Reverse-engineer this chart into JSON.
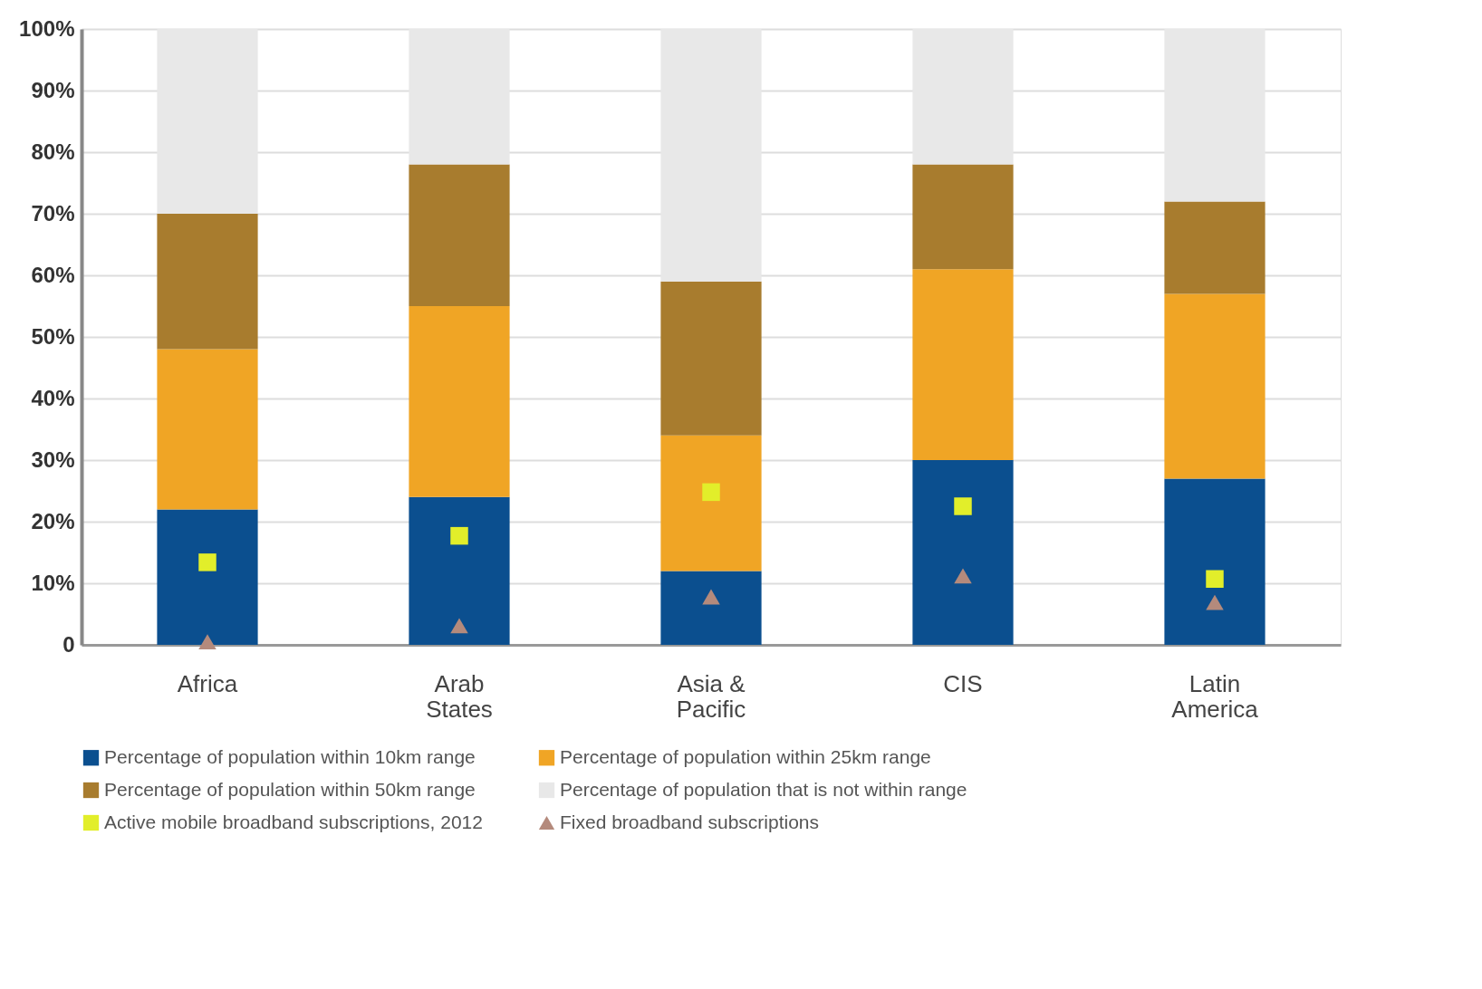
{
  "chart_data": {
    "type": "bar",
    "stacked": true,
    "categories": [
      "Africa",
      "Arab States",
      "Asia & Pacific",
      "CIS",
      "Latin America"
    ],
    "ylim": [
      0,
      100
    ],
    "yticks": [
      {
        "value": 0,
        "label": "0"
      },
      {
        "value": 10,
        "label": "10%"
      },
      {
        "value": 20,
        "label": "20%"
      },
      {
        "value": 30,
        "label": "30%"
      },
      {
        "value": 40,
        "label": "40%"
      },
      {
        "value": 50,
        "label": "50%"
      },
      {
        "value": 60,
        "label": "60%"
      },
      {
        "value": 70,
        "label": "70%"
      },
      {
        "value": 80,
        "label": "80%"
      },
      {
        "value": 90,
        "label": "90%"
      },
      {
        "value": 100,
        "label": "100%"
      }
    ],
    "grid": "y",
    "legend": "bottom",
    "series": [
      {
        "name": "Percentage of population within 10km range",
        "color": "#0b4f8f",
        "values": [
          22,
          24,
          12,
          30,
          27
        ]
      },
      {
        "name": "Percentage of population within 25km range",
        "color": "#f0a525",
        "values": [
          26,
          31,
          22,
          31,
          30
        ]
      },
      {
        "name": "Percentage of population within 50km range",
        "color": "#a87c2e",
        "values": [
          22,
          23,
          25,
          17,
          15
        ]
      },
      {
        "name": "Percentage of population that is not within range",
        "color": "#e8e8e8",
        "values": [
          30,
          22,
          41,
          22,
          28
        ]
      },
      {
        "name": "Active mobile broadband subscriptions, 2012",
        "type": "scatter",
        "marker": "square",
        "color": "#e2ee2a",
        "x": [
          "Africa",
          "Arab States",
          "Asia & Pacific",
          "CIS",
          "Latin America"
        ],
        "values": [
          13.4,
          17.7,
          24.8,
          22.5,
          10.7
        ]
      },
      {
        "name": "Fixed broadband subscriptions",
        "type": "scatter",
        "marker": "triangle",
        "color": "#b48a7c",
        "x": [
          "Africa",
          "Arab States",
          "Asia & Pacific",
          "CIS",
          "Latin America"
        ],
        "values": [
          0.5,
          3.1,
          7.8,
          11.2,
          6.9
        ]
      }
    ]
  }
}
